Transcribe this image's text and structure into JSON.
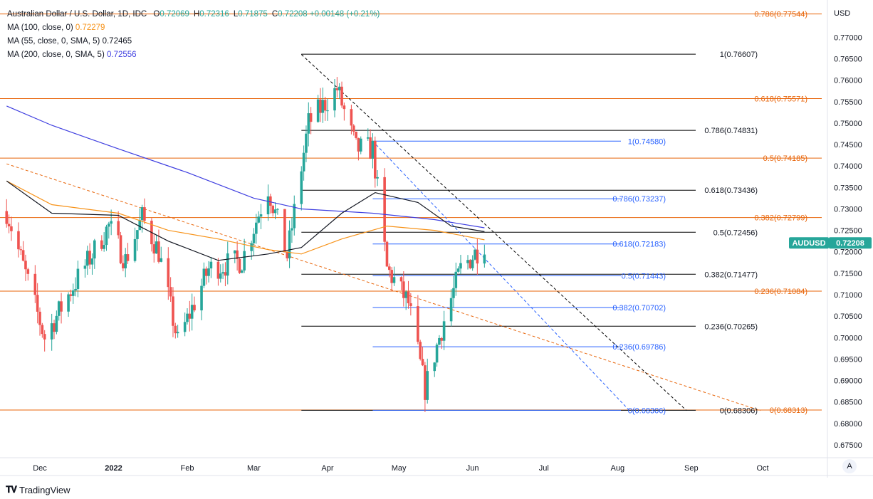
{
  "header": {
    "symbol_title": "Australian Dollar / U.S. Dollar, 1D, IDC",
    "ohlc": [
      {
        "label": "O",
        "value": "0.72069"
      },
      {
        "label": "H",
        "value": "0.72316"
      },
      {
        "label": "L",
        "value": "0.71875"
      },
      {
        "label": "C",
        "value": "0.72208"
      }
    ],
    "change": "+0.00148 (+0.21%)"
  },
  "indicators": [
    {
      "label": "MA (100, close, 0)",
      "value": "0.72279",
      "color": "#f7931a"
    },
    {
      "label": "MA (55, close, 0, SMA, 5)",
      "value": "0.72465",
      "color": "#131722"
    },
    {
      "label": "MA (200, close, 0, SMA, 5)",
      "value": "0.72556",
      "color": "#3f3fe0"
    }
  ],
  "brand": "TradingView",
  "auto_label": "A",
  "colors": {
    "up": "#26a69a",
    "down": "#ef5350",
    "fib_orange": "#e8650a",
    "fib_black": "#000000",
    "fib_blue": "#2962ff",
    "ma100": "#f7931a",
    "ma55": "#131722",
    "ma200": "#3f3fe0",
    "price_tag": "#26a69a"
  },
  "chart_data": {
    "type": "candlestick",
    "symbol": "AUDUSD",
    "currency": "USD",
    "last_price": "0.72208",
    "ylim": [
      0.6725,
      0.7787
    ],
    "y_ticks": [
      "0.77000",
      "0.76500",
      "0.76000",
      "0.75500",
      "0.75000",
      "0.74500",
      "0.74000",
      "0.73500",
      "0.73000",
      "0.72500",
      "0.72000",
      "0.71500",
      "0.71000",
      "0.70500",
      "0.70000",
      "0.69500",
      "0.69000",
      "0.68500",
      "0.68000",
      "0.67500"
    ],
    "x_labels": [
      "Dec",
      "2022",
      "Feb",
      "Mar",
      "Apr",
      "May",
      "Jun",
      "Jul",
      "Aug",
      "Sep",
      "Oct"
    ],
    "fib_orange": [
      {
        "ratio": "0.786",
        "price": "0.77544"
      },
      {
        "ratio": "0.618",
        "price": "0.75571"
      },
      {
        "ratio": "0.5",
        "price": "0.74185"
      },
      {
        "ratio": "0.382",
        "price": "0.72799"
      },
      {
        "ratio": "0.236",
        "price": "0.71084"
      },
      {
        "ratio": "0",
        "price": "0.68313"
      }
    ],
    "fib_black": [
      {
        "ratio": "1",
        "price": "0.76607"
      },
      {
        "ratio": "0.786",
        "price": "0.74831"
      },
      {
        "ratio": "0.618",
        "price": "0.73436"
      },
      {
        "ratio": "0.5",
        "price": "0.72456"
      },
      {
        "ratio": "0.382",
        "price": "0.71477"
      },
      {
        "ratio": "0.236",
        "price": "0.70265"
      },
      {
        "ratio": "0",
        "price": "0.68306"
      }
    ],
    "fib_blue": [
      {
        "ratio": "1",
        "price": "0.74580"
      },
      {
        "ratio": "0.786",
        "price": "0.73237"
      },
      {
        "ratio": "0.618",
        "price": "0.72183"
      },
      {
        "ratio": "0.5",
        "price": "0.71443"
      },
      {
        "ratio": "0.382",
        "price": "0.70702"
      },
      {
        "ratio": "0.236",
        "price": "0.69786"
      },
      {
        "ratio": "0",
        "price": "0.68306"
      }
    ],
    "trendlines": [
      {
        "from": [
          "2021-11-17",
          0.7405
        ],
        "to": [
          "2022-09-30",
          0.683
        ],
        "style": "dashed",
        "color": "#e8650a"
      },
      {
        "from": [
          "2022-03-21",
          0.766
        ],
        "to": [
          "2022-08-30",
          0.683
        ],
        "style": "dashed",
        "color": "#000000"
      },
      {
        "from": [
          "2022-04-20",
          0.7458
        ],
        "to": [
          "2022-08-06",
          0.683
        ],
        "style": "dashed",
        "color": "#2962ff"
      }
    ],
    "ma200": [
      [
        "2021-11-17",
        0.754
      ],
      [
        "2021-12-06",
        0.7495
      ],
      [
        "2022-01-03",
        0.744
      ],
      [
        "2022-02-01",
        0.7385
      ],
      [
        "2022-03-01",
        0.7325
      ],
      [
        "2022-03-21",
        0.73
      ],
      [
        "2022-04-20",
        0.729
      ],
      [
        "2022-05-16",
        0.7275
      ],
      [
        "2022-06-06",
        0.7256
      ]
    ],
    "ma100": [
      [
        "2021-11-17",
        0.7365
      ],
      [
        "2021-12-06",
        0.731
      ],
      [
        "2022-01-03",
        0.729
      ],
      [
        "2022-01-24",
        0.725
      ],
      [
        "2022-02-14",
        0.723
      ],
      [
        "2022-03-07",
        0.7205
      ],
      [
        "2022-03-21",
        0.7195
      ],
      [
        "2022-04-07",
        0.723
      ],
      [
        "2022-04-26",
        0.726
      ],
      [
        "2022-05-16",
        0.725
      ],
      [
        "2022-06-06",
        0.7228
      ]
    ],
    "ma55": [
      [
        "2021-11-17",
        0.7365
      ],
      [
        "2021-12-06",
        0.729
      ],
      [
        "2022-01-03",
        0.7285
      ],
      [
        "2022-01-24",
        0.7225
      ],
      [
        "2022-02-14",
        0.718
      ],
      [
        "2022-03-07",
        0.7195
      ],
      [
        "2022-03-21",
        0.721
      ],
      [
        "2022-04-07",
        0.729
      ],
      [
        "2022-04-21",
        0.7338
      ],
      [
        "2022-05-09",
        0.7315
      ],
      [
        "2022-05-23",
        0.726
      ],
      [
        "2022-06-06",
        0.7247
      ]
    ],
    "close_path": [
      [
        "2021-11-17",
        0.7295
      ],
      [
        "2021-11-26",
        0.713
      ],
      [
        "2021-12-03",
        0.7
      ],
      [
        "2021-12-15",
        0.712
      ],
      [
        "2021-12-30",
        0.726
      ],
      [
        "2022-01-06",
        0.718
      ],
      [
        "2022-01-13",
        0.728
      ],
      [
        "2022-01-20",
        0.72
      ],
      [
        "2022-01-28",
        0.699
      ],
      [
        "2022-02-10",
        0.716
      ],
      [
        "2022-02-24",
        0.718
      ],
      [
        "2022-03-07",
        0.735
      ],
      [
        "2022-03-15",
        0.719
      ],
      [
        "2022-03-24",
        0.75
      ],
      [
        "2022-04-05",
        0.758
      ],
      [
        "2022-04-13",
        0.744
      ],
      [
        "2022-04-20",
        0.744
      ],
      [
        "2022-04-26",
        0.716
      ],
      [
        "2022-05-05",
        0.708
      ],
      [
        "2022-05-12",
        0.688
      ],
      [
        "2022-05-20",
        0.704
      ],
      [
        "2022-05-27",
        0.716
      ],
      [
        "2022-06-06",
        0.7221
      ]
    ]
  }
}
